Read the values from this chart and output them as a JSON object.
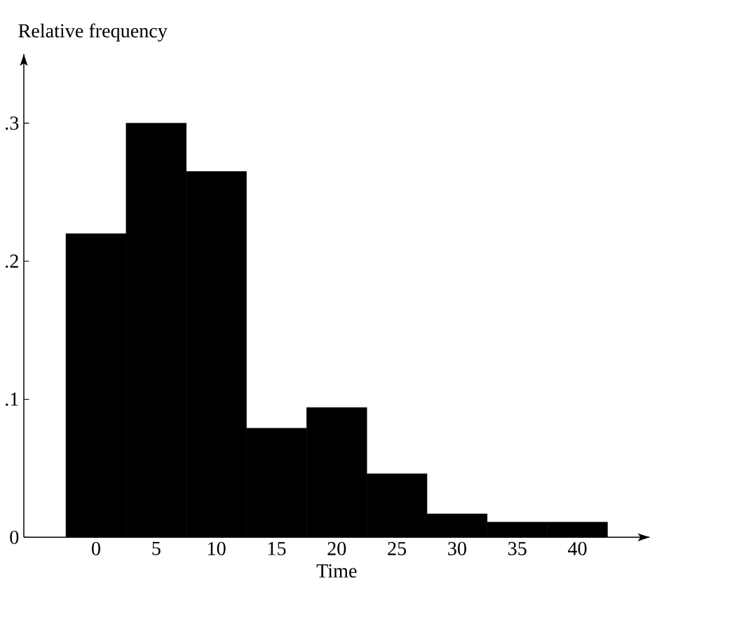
{
  "chart_data": {
    "type": "histogram",
    "xlabel": "Time",
    "ylabel": "Relative frequency",
    "bins": [
      -2.5,
      2.5,
      7.5,
      12.5,
      17.5,
      22.5,
      27.5,
      32.5,
      37.5,
      42.5
    ],
    "values": [
      0.22,
      0.3,
      0.265,
      0.079,
      0.094,
      0.046,
      0.017,
      0.011,
      0.011
    ],
    "color": "#000000",
    "xlim": [
      -6,
      46
    ],
    "ylim": [
      0,
      0.35
    ],
    "xticks": [
      0,
      5,
      10,
      15,
      20,
      25,
      30,
      35,
      40
    ],
    "yticks": [
      0,
      {
        "value": 0.1,
        "label": ".1"
      },
      {
        "value": 0.2,
        "label": ".2"
      },
      {
        "value": 0.3,
        "label": ".3"
      }
    ],
    "grid": false
  }
}
